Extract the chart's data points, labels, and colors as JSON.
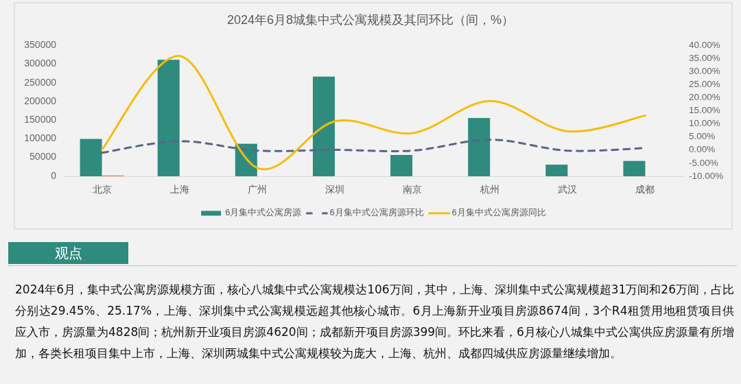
{
  "chart_data": {
    "type": "bar",
    "title": "2024年6月8城集中式公寓规模及其同环比（间，%）",
    "categories": [
      "北京",
      "上海",
      "广州",
      "深圳",
      "南京",
      "杭州",
      "武汉",
      "成都"
    ],
    "series": [
      {
        "name": "6月集中式公寓房源",
        "color": "#2e8b7e",
        "values": [
          100000,
          312000,
          87000,
          267000,
          57000,
          156000,
          31000,
          41000
        ]
      },
      {
        "color": "#e8793a",
        "values": [
          2000,
          null,
          null,
          null,
          null,
          null,
          null,
          null
        ]
      },
      {
        "name": "6月集中式公寓房源环比",
        "type": "line",
        "axis": "y2",
        "color": "#5a6586",
        "line_style": "dashed",
        "values": [
          -1.0,
          3.4,
          -0.2,
          0.1,
          -0.2,
          4.0,
          -0.2,
          0.8
        ]
      },
      {
        "name": "6月集中式公寓房源同比",
        "type": "line",
        "axis": "y2",
        "color": "#f5bd0c",
        "line_style": "solid",
        "values": [
          0.2,
          36.0,
          -6.8,
          11.0,
          6.5,
          18.8,
          7.2,
          13.2
        ]
      }
    ],
    "ylim": [
      0,
      350000
    ],
    "yticks": [
      0,
      50000,
      100000,
      150000,
      200000,
      250000,
      300000,
      350000
    ],
    "y2lim": [
      -10,
      40
    ],
    "y2ticks": [
      {
        "value": -10,
        "label": "-10.00%"
      },
      {
        "value": -5,
        "label": "-5.00%"
      },
      {
        "value": 0,
        "label": "0.00%"
      },
      {
        "value": 5,
        "label": "5.00%"
      },
      {
        "value": 10,
        "label": "10.00%"
      },
      {
        "value": 15,
        "label": "15.00%"
      },
      {
        "value": 20,
        "label": "20.00%"
      },
      {
        "value": 25,
        "label": "25.00%"
      },
      {
        "value": 30,
        "label": "30.00%"
      },
      {
        "value": 35,
        "label": "35.00%"
      },
      {
        "value": 40,
        "label": "40.00%"
      }
    ],
    "grid": false,
    "legend": "bottom",
    "annotations": [
      "观点",
      "2024年6月，集中式公寓房源规模方面，核心八城集中式公寓规模达106万间，其中，上海、深圳集中式公寓规模超31万间和26万间，占比分别达29.45%、25.17%，上海、深圳集中式公寓规模远超其他核心城市。6月上海新开业项目房源8674间，3个R4租赁用地租赁项目供应入市，房源量为4828间；杭州新开业项目房源4620间；成都新开项目房源399间。环比来看，6月核心八城集中式公寓供应房源量有所增加，各类长租项目集中上市，上海、深圳两城集中式公寓规模较为庞大，上海、杭州、成都四城供应房源量继续增加。"
    ]
  }
}
